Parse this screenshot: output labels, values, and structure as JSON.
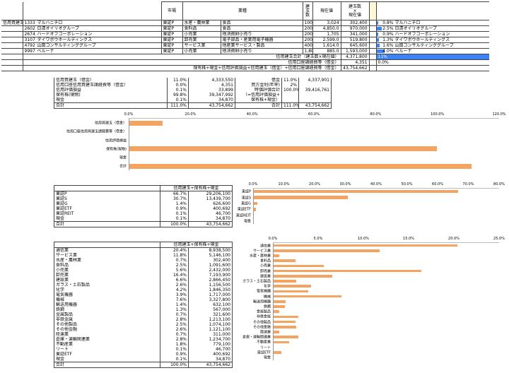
{
  "header": {
    "market": "市場",
    "industry": "業種",
    "qty": "建\n玉\n数",
    "price": "現在値",
    "value": "建玉数\n×\n現在値"
  },
  "margin_label": "信用買建玉",
  "holdings": [
    {
      "code": "1333",
      "name": "マルハニチロ",
      "market": "東証P",
      "industry1": "水産・農林業",
      "industry2": "食品",
      "qty": "100",
      "price": "3,024",
      "value": "302,400",
      "pct": "0.8%",
      "name2": "マルハニチロ",
      "ratio": 0.8
    },
    {
      "code": "2602",
      "name": "日清オイリオグループ",
      "market": "東証P",
      "industry1": "食料品",
      "industry2": "食品",
      "qty": "200",
      "price": "4,850.0",
      "value": "970,000",
      "pct": "2.5%",
      "name2": "日清オイリオグループ",
      "ratio": 2.5
    },
    {
      "code": "2674",
      "name": "ハードオフコーポレーション",
      "market": "東証P",
      "industry1": "小売業",
      "industry2": "他消費財小売り",
      "qty": "200",
      "price": "1,705",
      "value": "341,000",
      "pct": "0.9%",
      "name2": "ハードオフコーポレーション",
      "ratio": 0.9
    },
    {
      "code": "3107",
      "name": "ダイワボウホールディングス",
      "market": "東証P",
      "industry1": "卸売業",
      "industry2": "電子部品・産業用電子機器",
      "qty": "200",
      "price": "2,599.0",
      "value": "519,800",
      "pct": "1.3%",
      "name2": "ダイワボウホールディングス",
      "ratio": 1.3
    },
    {
      "code": "4792",
      "name": "山田コンサルティンググループ",
      "market": "東証P",
      "industry1": "サービス業",
      "industry2": "他産業サービス・製品",
      "qty": "400",
      "price": "1,614.0",
      "value": "645,600",
      "pct": "1.6%",
      "name2": "山田コンサルティンググループ",
      "ratio": 1.6
    },
    {
      "code": "9997",
      "name": "ベルーナ",
      "market": "東証P",
      "industry1": "小売業",
      "industry2": "他消費財小売り",
      "qty": "1,800",
      "price": "885.0",
      "value": "1,593,000",
      "pct": "4.0%",
      "name2": "ベルーナ",
      "ratio": 4.0
    }
  ],
  "totals": [
    {
      "label": "信用建玉合計（建玉数×現在値）",
      "value": "4,371,800",
      "pct": "11%"
    },
    {
      "label": "信用口座諸経費等（借金）",
      "value": "4,351",
      "pct": "0.0%"
    },
    {
      "label": "保有株+現金+信用評価損益+信用建玉（借金）+信用口座諸経費等（借金）",
      "value": "43,754,662",
      "pct": ""
    }
  ],
  "summary": {
    "rows": [
      {
        "label": "信用買建玉（借金）",
        "pct": "11.0%",
        "value": "4,333,550",
        "label2": "借金",
        "pct2": "11.0%",
        "value2": "4,337,901"
      },
      {
        "label": "信用口座信用買建玉諸経費等（借金）",
        "pct": "0.0%",
        "value": "4,351",
        "label2": "買方金利(年率)",
        "pct2": "2%",
        "value2": ""
      },
      {
        "label": "信用評価損益",
        "pct": "0.1%",
        "value": "33,899",
        "label2": "時価評価合計",
        "pct2": "100.0%",
        "value2": "39,416,761"
      },
      {
        "label": "保有株(現物)",
        "pct": "99.8%",
        "value": "39,347,992",
        "label2": "（=信用評価損益+",
        "pct2": "",
        "value2": ""
      },
      {
        "label": "現金",
        "pct": "0.1%",
        "value": "34,870",
        "label2": "保有株+現金）",
        "pct2": "",
        "value2": ""
      },
      {
        "label": "合計",
        "pct": "111.0%",
        "value": "43,754,662",
        "label2": "合計",
        "pct2": "111.0%",
        "value2": "43,754,662"
      }
    ]
  },
  "market_table": {
    "title": "信用建玉+保有株+現金",
    "rows": [
      {
        "label": "東証P",
        "pct": "66.7%",
        "value": "29,206,100"
      },
      {
        "label": "東証S",
        "pct": "30.7%",
        "value": "13,439,700"
      },
      {
        "label": "東証G",
        "pct": "1.4%",
        "value": "626,600"
      },
      {
        "label": "東証ETF",
        "pct": "0.9%",
        "value": "400,692"
      },
      {
        "label": "東証REIT",
        "pct": "0.1%",
        "value": "46,700"
      },
      {
        "label": "現金",
        "pct": "0.1%",
        "value": "34,870"
      },
      {
        "label": "合計",
        "pct": "100.0%",
        "value": "43,754,662"
      }
    ]
  },
  "industry_table": {
    "title": "信用建玉+保有株+現金",
    "rows": [
      {
        "label": "通信業",
        "pct": "20.4%",
        "value": "8,938,500"
      },
      {
        "label": "サービス業",
        "pct": "11.8%",
        "value": "5,146,100"
      },
      {
        "label": "水産・農林業",
        "pct": "0.7%",
        "value": "302,400"
      },
      {
        "label": "食料品",
        "pct": "2.5%",
        "value": "1,091,600"
      },
      {
        "label": "小売業",
        "pct": "5.6%",
        "value": "2,432,000"
      },
      {
        "label": "卸売業",
        "pct": "16.4%",
        "value": "7,193,900"
      },
      {
        "label": "建設業",
        "pct": "6.6%",
        "value": "2,866,450"
      },
      {
        "label": "ガラス・土石製品",
        "pct": "2.6%",
        "value": "1,156,500"
      },
      {
        "label": "化学",
        "pct": "4.2%",
        "value": "1,846,350"
      },
      {
        "label": "電気機器",
        "pct": "3.9%",
        "value": "1,717,000"
      },
      {
        "label": "機械",
        "pct": "7.6%",
        "value": "3,327,800"
      },
      {
        "label": "輸送用機器",
        "pct": "1.4%",
        "value": "632,100"
      },
      {
        "label": "鉄鋼",
        "pct": "1.3%",
        "value": "567,000"
      },
      {
        "label": "金属製品",
        "pct": "0.7%",
        "value": "321,600"
      },
      {
        "label": "非鉄金属",
        "pct": "2.8%",
        "value": "1,213,100"
      },
      {
        "label": "その他製品",
        "pct": "2.5%",
        "value": "1,074,100"
      },
      {
        "label": "その他金融",
        "pct": "2.6%",
        "value": "1,121,100"
      },
      {
        "label": "陸運業",
        "pct": "0.7%",
        "value": "311,000"
      },
      {
        "label": "倉庫・運輸関連業",
        "pct": "2.8%",
        "value": "1,234,700"
      },
      {
        "label": "不動産業",
        "pct": "1.8%",
        "value": "779,100"
      },
      {
        "label": "リート",
        "pct": "0.1%",
        "value": "46,700"
      },
      {
        "label": "東証ETF",
        "pct": "0.9%",
        "value": "400,692"
      },
      {
        "label": "現金",
        "pct": "0.1%",
        "value": "34,870"
      },
      {
        "label": "合計",
        "pct": "100.0%",
        "value": "43,754,662"
      }
    ]
  },
  "chart_data": [
    {
      "type": "bar",
      "orientation": "horizontal",
      "categories": [
        "信用買建玉（借金）",
        "信用口座信用買建玉諸経費等（借金）",
        "信用評価損益",
        "保有株(現物)",
        "現金",
        "合計"
      ],
      "values": [
        11.0,
        0.0,
        0.1,
        99.8,
        0.1,
        111.0
      ],
      "xlim": [
        0,
        120
      ],
      "ticks": [
        "0.0%",
        "20.0%",
        "40.0%",
        "60.0%",
        "80.0%",
        "100.0%",
        "120.0%"
      ],
      "color": "#f4a460"
    },
    {
      "type": "bar",
      "orientation": "horizontal",
      "categories": [
        "東証P",
        "東証S",
        "東証G",
        "東証ETF",
        "東証REIT",
        "現金"
      ],
      "values": [
        66.7,
        30.7,
        1.4,
        0.9,
        0.1,
        0.1
      ],
      "xlim": [
        0,
        80
      ],
      "ticks": [
        "0.0%",
        "10.0%",
        "20.0%",
        "30.0%",
        "40.0%",
        "50.0%",
        "60.0%",
        "70.0%",
        "80.0%"
      ],
      "color": "#f4a460"
    },
    {
      "type": "bar",
      "orientation": "horizontal",
      "categories": [
        "通信業",
        "サービス業",
        "水産・農林業",
        "食料品",
        "小売業",
        "卸売業",
        "建設業",
        "ガラス・土石製品",
        "化学",
        "電気機器",
        "機械",
        "輸送用機器",
        "鉄鋼",
        "金属製品",
        "非鉄金属",
        "その他製品",
        "その他金融",
        "陸運業",
        "倉庫・運輸関連業",
        "不動産業",
        "リート",
        "東証ETF",
        "現金"
      ],
      "values": [
        20.4,
        11.8,
        0.7,
        2.5,
        5.6,
        16.4,
        6.6,
        2.6,
        4.2,
        3.9,
        7.6,
        1.4,
        1.3,
        0.7,
        2.8,
        2.5,
        2.6,
        0.7,
        2.8,
        1.8,
        0.1,
        0.9,
        0.1
      ],
      "xlim": [
        0,
        25
      ],
      "ticks": [
        "0.0%",
        "5.0%",
        "10.0%",
        "15.0%",
        "20.0%",
        "25.0%"
      ],
      "color": "#f4a460"
    }
  ]
}
